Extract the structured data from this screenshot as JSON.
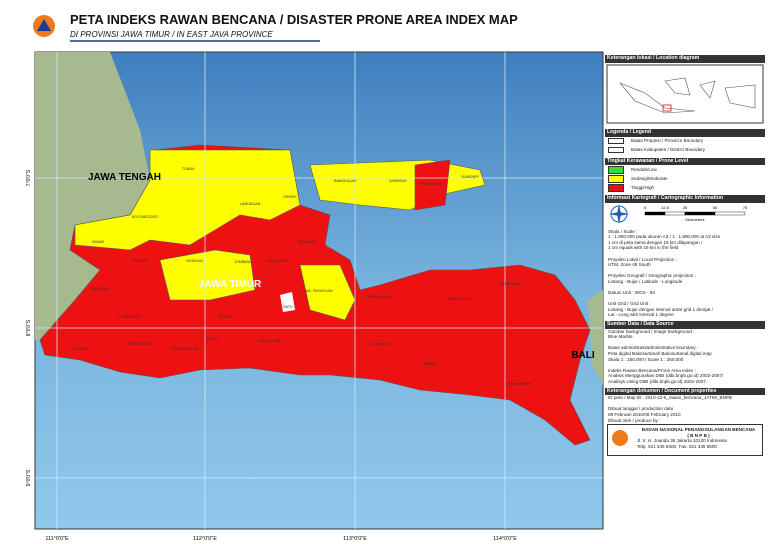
{
  "header": {
    "title": "PETA INDEKS RAWAN BENCANA / DISASTER PRONE AREA INDEX MAP",
    "subtitle": "DI PROVINSI JAWA TIMUR / IN EAST JAVA PROVINCE"
  },
  "map": {
    "big_labels": [
      "JAWA TENGAH",
      "JAWA TIMUR",
      "BALI"
    ],
    "regions": [
      "TUBAN",
      "LAMONGAN",
      "GRESIK",
      "BOJONEGORO",
      "NGAWI",
      "NGANJUK",
      "JOMBANG",
      "MOJOKERTO",
      "SIDOARJO",
      "KAB. PASURUAN",
      "PROBOLINGGO",
      "KAB. MALANG",
      "BLITAR",
      "TULUNGAGUNG",
      "TRENGGALEK",
      "PACITAN",
      "PONOROGO",
      "MADIUN",
      "MAGETAN",
      "KEDIRI",
      "BANGKALAN",
      "SAMPANG",
      "PAMEKASAN",
      "SUMENEP",
      "LUMAJANG",
      "JEMBER",
      "BONDOWOSO",
      "SITUBONDO",
      "BANYUWANGI",
      "BATU"
    ],
    "lon_labels": [
      "111°0'0\"E",
      "112°0'0\"E",
      "113°0'0\"E",
      "114°0'0\"E"
    ],
    "lat_labels": [
      "7°0'0\"S",
      "8°0'0\"S",
      "9°0'0\"S"
    ]
  },
  "panel": {
    "location": "Keterangan lokasi / Location diagram",
    "legend_head": "Legenda / Legend",
    "boundaries": [
      "Batas Propinsi / Province Boundary",
      "Batas Kabupaten / District Boundary"
    ],
    "prone_head": "Tingkat Kerawanan / Prone Level",
    "levels": [
      {
        "label": "Rendah/Low",
        "color": "#33dd33"
      },
      {
        "label": "Sedang/Moderate",
        "color": "#ffff00"
      },
      {
        "label": "Tinggi/High",
        "color": "#ee1111"
      }
    ],
    "carto_head": "Informasi Kartografi / Cartographic Information",
    "scale_ticks": [
      "0",
      "12.5",
      "25",
      "50",
      "75"
    ],
    "scale_unit": "Kilometers",
    "carto_lines": [
      "Skala / Scale :",
      "1 : 1.900.000 pada ukuran A3 / 1 : 1.900.000 at A3 size",
      "1 cm di peta sama dengan 19 km dilapangan /",
      "1 cm equals with 19 km in the field",
      "",
      "Proyeksi Lokal / Local Projection :",
      "UTM, Zone 49 South",
      "",
      "Proyeksi Geografi / Geographic projection :",
      "Lintang - Bujur / Latitude - Longitude",
      "",
      "Datum Unit : WGS - 84",
      "",
      "Unit Grid / Grid Unit :",
      "Lintang - Bujur dengan interval antar grid 1 derajat /",
      "Lat - Long with interval 1 degree"
    ],
    "source_head": "Sumber Data / Data Source",
    "source_lines": [
      "Gambar background / Image background :",
      "Blue Marble",
      "",
      "Batas administrasi/administrative boundary :",
      "Peta digital Bakosurtanal/ Bakosurtanal digital map",
      "Skala 1 : 250.000 / Scale 1 : 250.000",
      "",
      "Indeks Rawan Bencana/Prone Area Index :",
      "Analisis Menggunakan DIBI (dibi.bnpb.go.id) 2002-2007/",
      "Analisys Using DIBI (dibi.bnpb.go.id) 2002-2007."
    ],
    "doc_head": "Keterangan dokumen / Document properties",
    "doc_lines": [
      "ID peta / Map ID : 2010-12-6_rawan_bencana_JATIM_BNPB",
      "",
      "Dibuat tanggal / production date",
      "08 Februari 2010/08 February 2010"
    ],
    "producer_head": "Dibuat oleh / produce by :",
    "producer": [
      "BADAN NASIONAL PENANGGULANGAN BENCANA",
      "( B N P B )",
      "Jl. Ir. H. Juanda 36 Jakarta 10120 Indonesia",
      "Telp. 021 345 8400, Fax. 021 345 8500"
    ]
  }
}
